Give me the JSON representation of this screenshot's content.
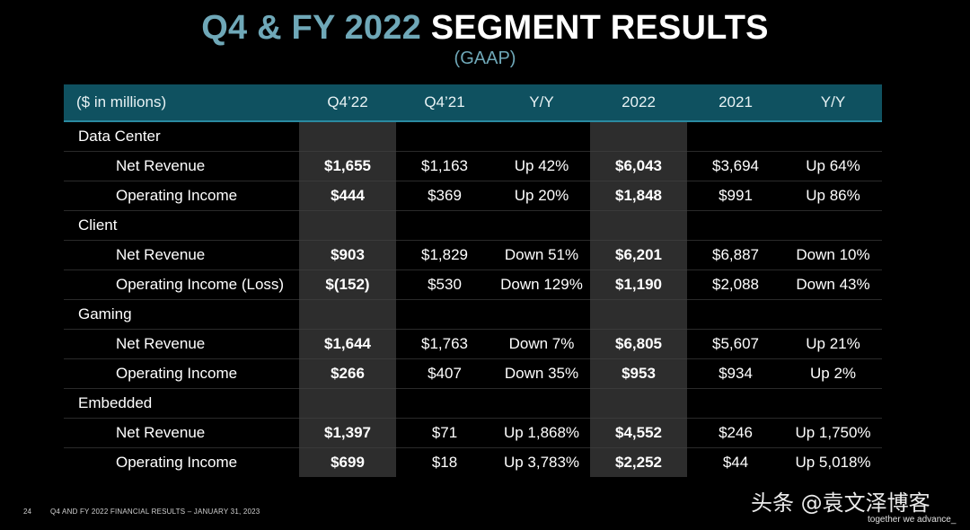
{
  "title": {
    "accent": "Q4 & FY 2022",
    "main": "SEGMENT RESULTS"
  },
  "subtitle": "(GAAP)",
  "table": {
    "headers": [
      "($ in millions)",
      "Q4’22",
      "Q4’21",
      "Y/Y",
      "2022",
      "2021",
      "Y/Y"
    ],
    "rows": [
      {
        "type": "section",
        "label": "Data Center"
      },
      {
        "type": "item",
        "label": "Net Revenue",
        "q422": "$1,655",
        "q421": "$1,163",
        "yy_q": "Up 42%",
        "fy22": "$6,043",
        "fy21": "$3,694",
        "yy_fy": "Up 64%"
      },
      {
        "type": "item",
        "label": "Operating Income",
        "q422": "$444",
        "q421": "$369",
        "yy_q": "Up 20%",
        "fy22": "$1,848",
        "fy21": "$991",
        "yy_fy": "Up 86%"
      },
      {
        "type": "section",
        "label": "Client"
      },
      {
        "type": "item",
        "label": "Net Revenue",
        "q422": "$903",
        "q421": "$1,829",
        "yy_q": "Down 51%",
        "fy22": "$6,201",
        "fy21": "$6,887",
        "yy_fy": "Down 10%"
      },
      {
        "type": "item",
        "label": "Operating Income (Loss)",
        "q422": "$(152)",
        "q421": "$530",
        "yy_q": "Down 129%",
        "fy22": "$1,190",
        "fy21": "$2,088",
        "yy_fy": "Down 43%"
      },
      {
        "type": "section",
        "label": "Gaming"
      },
      {
        "type": "item",
        "label": "Net Revenue",
        "q422": "$1,644",
        "q421": "$1,763",
        "yy_q": "Down 7%",
        "fy22": "$6,805",
        "fy21": "$5,607",
        "yy_fy": "Up 21%"
      },
      {
        "type": "item",
        "label": "Operating Income",
        "q422": "$266",
        "q421": "$407",
        "yy_q": "Down 35%",
        "fy22": "$953",
        "fy21": "$934",
        "yy_fy": "Up 2%"
      },
      {
        "type": "section",
        "label": "Embedded"
      },
      {
        "type": "item",
        "label": "Net Revenue",
        "q422": "$1,397",
        "q421": "$71",
        "yy_q": "Up 1,868%",
        "fy22": "$4,552",
        "fy21": "$246",
        "yy_fy": "Up 1,750%"
      },
      {
        "type": "item",
        "label": "Operating Income",
        "q422": "$699",
        "q421": "$18",
        "yy_q": "Up 3,783%",
        "fy22": "$2,252",
        "fy21": "$44",
        "yy_fy": "Up 5,018%"
      }
    ]
  },
  "footer": {
    "page_number": "24",
    "text": "Q4 AND FY 2022 FINANCIAL RESULTS – JANUARY 31, 2023",
    "watermark": "头条 @袁文泽博客",
    "tagline": "together we advance_"
  },
  "colors": {
    "accent": "#6fa8b8",
    "header_bg": "#0f5160",
    "highlight_col": "#2d2d2d"
  }
}
